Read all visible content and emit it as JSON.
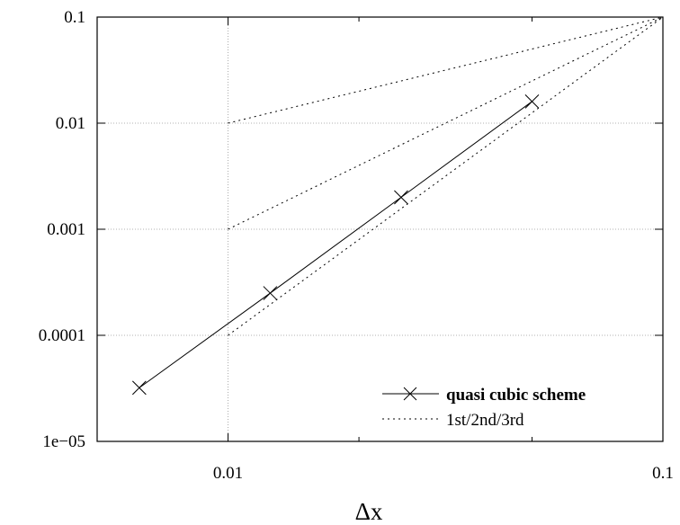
{
  "chart_data": {
    "type": "line",
    "title": "",
    "xlabel": "Δx",
    "ylabel": "",
    "xscale": "log",
    "yscale": "log",
    "xlim": [
      0.005,
      0.1
    ],
    "ylim": [
      1e-05,
      0.1
    ],
    "grid": true,
    "legend_position": "bottom-right",
    "x_ticks": [
      {
        "value": 0.01,
        "label": "0.01"
      },
      {
        "value": 0.1,
        "label": "0.1"
      }
    ],
    "x_minor_ticks": [
      0.02,
      0.05
    ],
    "y_ticks": [
      {
        "value": 1e-05,
        "label": "1e−05"
      },
      {
        "value": 0.0001,
        "label": "0.0001"
      },
      {
        "value": 0.001,
        "label": "0.001"
      },
      {
        "value": 0.01,
        "label": "0.01"
      },
      {
        "value": 0.1,
        "label": "0.1"
      }
    ],
    "series": [
      {
        "name": "quasi cubic scheme",
        "style": "solid",
        "marker": "x",
        "color": "#000000",
        "x": [
          0.00625,
          0.0125,
          0.025,
          0.05
        ],
        "y": [
          3.2e-05,
          0.00025,
          0.002,
          0.016
        ]
      },
      {
        "name": "1st/2nd/3rd",
        "style": "dotted",
        "color": "#000000",
        "lines": [
          {
            "x": [
              0.01,
              0.1
            ],
            "y": [
              0.01,
              0.1
            ]
          },
          {
            "x": [
              0.01,
              0.1
            ],
            "y": [
              0.001,
              0.1
            ]
          },
          {
            "x": [
              0.01,
              0.1
            ],
            "y": [
              0.0001,
              0.1
            ]
          }
        ]
      }
    ]
  }
}
